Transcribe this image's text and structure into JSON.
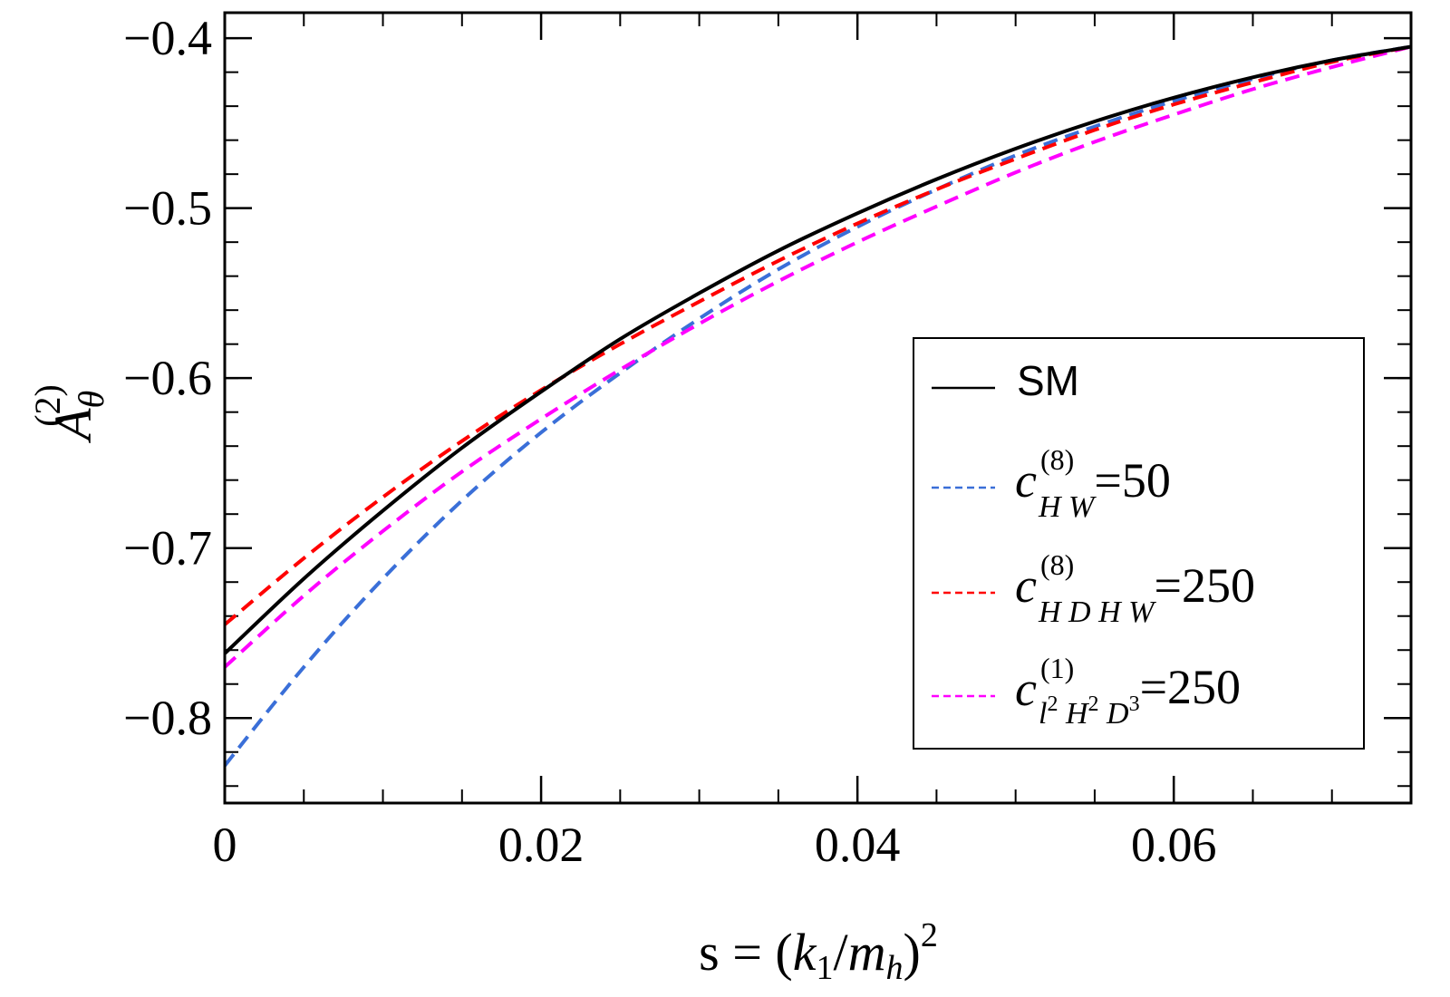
{
  "chart_data": {
    "type": "line",
    "title": "",
    "xlabel": "s = (k1/mh)^2",
    "xlabel_parts": {
      "prefix": "s = (",
      "k": "k",
      "k_sub": "1",
      "slash": "/",
      "m": "m",
      "m_sub": "h",
      "close": ")",
      "power": "2"
    },
    "ylabel_parts": {
      "base": "A",
      "sub": "θ",
      "sup": "(2)"
    },
    "xlim": [
      0,
      0.075
    ],
    "ylim": [
      -0.85,
      -0.385
    ],
    "x_ticks": [
      {
        "value": 0,
        "label": "0"
      },
      {
        "value": 0.02,
        "label": "0.02"
      },
      {
        "value": 0.04,
        "label": "0.04"
      },
      {
        "value": 0.06,
        "label": "0.06"
      }
    ],
    "y_ticks": [
      {
        "value": -0.4,
        "label": "−0.4"
      },
      {
        "value": -0.5,
        "label": "−0.5"
      },
      {
        "value": -0.6,
        "label": "−0.6"
      },
      {
        "value": -0.7,
        "label": "−0.7"
      },
      {
        "value": -0.8,
        "label": "−0.8"
      }
    ],
    "x_minor_step": 0.005,
    "y_minor_step": 0.02,
    "x": [
      0,
      0.005,
      0.01,
      0.015,
      0.02,
      0.025,
      0.03,
      0.035,
      0.04,
      0.045,
      0.05,
      0.055,
      0.06,
      0.065,
      0.07,
      0.075
    ],
    "series": [
      {
        "name": "SM",
        "color": "#000000",
        "dash": "solid",
        "values": [
          -0.762,
          -0.718,
          -0.678,
          -0.641,
          -0.608,
          -0.577,
          -0.55,
          -0.525,
          -0.503,
          -0.483,
          -0.465,
          -0.449,
          -0.435,
          -0.423,
          -0.413,
          -0.405
        ]
      },
      {
        "name": "cHW8",
        "color": "#3a6fd8",
        "dash": "dash",
        "values": [
          -0.828,
          -0.77,
          -0.718,
          -0.672,
          -0.632,
          -0.597,
          -0.565,
          -0.536,
          -0.511,
          -0.489,
          -0.469,
          -0.452,
          -0.437,
          -0.424,
          -0.413,
          -0.405
        ]
      },
      {
        "name": "cHDHW8",
        "color": "#ff0000",
        "dash": "dash",
        "values": [
          -0.745,
          -0.706,
          -0.67,
          -0.637,
          -0.607,
          -0.58,
          -0.555,
          -0.531,
          -0.509,
          -0.489,
          -0.471,
          -0.454,
          -0.439,
          -0.426,
          -0.414,
          -0.405
        ]
      },
      {
        "name": "cl2H2D3",
        "color": "#ff00ff",
        "dash": "dash",
        "values": [
          -0.77,
          -0.728,
          -0.69,
          -0.655,
          -0.624,
          -0.595,
          -0.568,
          -0.543,
          -0.52,
          -0.499,
          -0.479,
          -0.461,
          -0.445,
          -0.43,
          -0.417,
          -0.405
        ]
      }
    ],
    "legend": {
      "placement": "center-right",
      "entries": [
        {
          "series": "SM",
          "label": "SM"
        },
        {
          "series": "cHW8",
          "base": "c",
          "sup": "(8)",
          "sub": "H W",
          "value": "=50"
        },
        {
          "series": "cHDHW8",
          "base": "c",
          "sup": "(8)",
          "sub": "H D H W",
          "value": "=250"
        },
        {
          "series": "cl2H2D3",
          "base": "c",
          "sup": "(1)",
          "sub_parts": [
            "l",
            "2",
            " H",
            "2",
            " D",
            "3"
          ],
          "value": "=250"
        }
      ]
    }
  }
}
